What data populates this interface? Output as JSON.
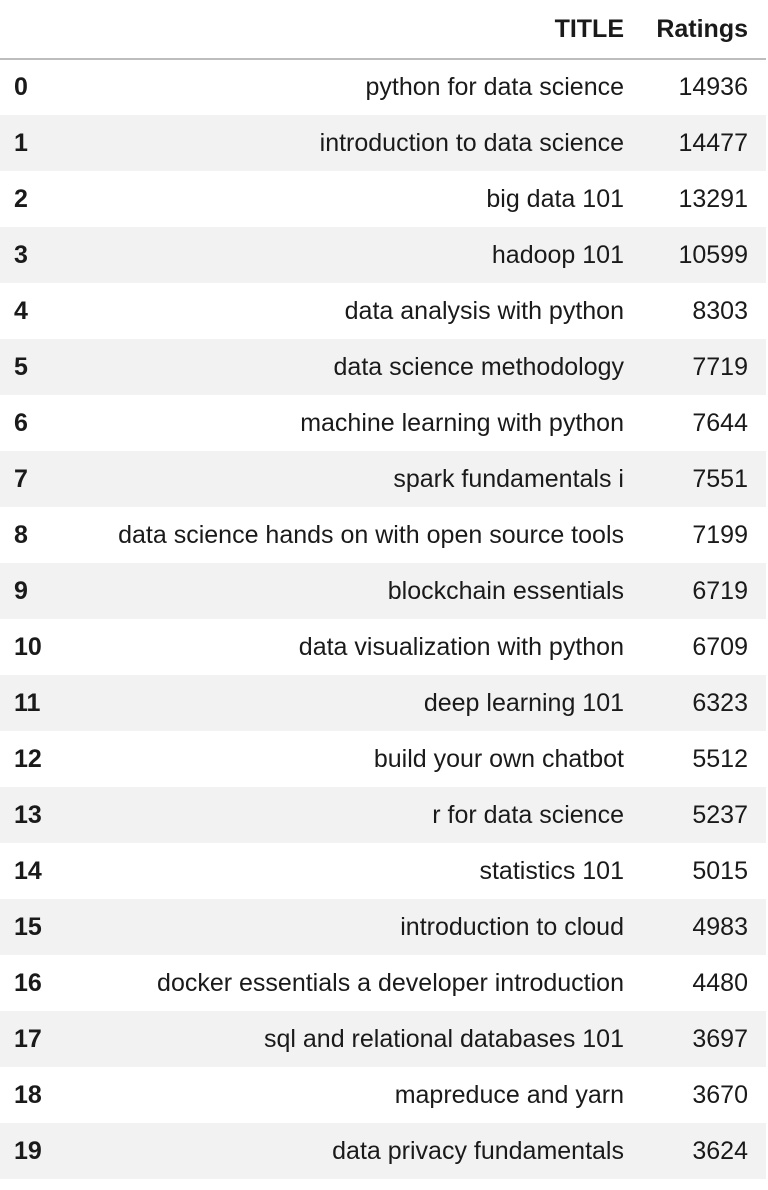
{
  "table": {
    "columns": {
      "index": "",
      "title": "TITLE",
      "ratings": "Ratings"
    },
    "rows": [
      {
        "index": "0",
        "title": "python for data science",
        "ratings": "14936"
      },
      {
        "index": "1",
        "title": "introduction to data science",
        "ratings": "14477"
      },
      {
        "index": "2",
        "title": "big data 101",
        "ratings": "13291"
      },
      {
        "index": "3",
        "title": "hadoop 101",
        "ratings": "10599"
      },
      {
        "index": "4",
        "title": "data analysis with python",
        "ratings": "8303"
      },
      {
        "index": "5",
        "title": "data science methodology",
        "ratings": "7719"
      },
      {
        "index": "6",
        "title": "machine learning with python",
        "ratings": "7644"
      },
      {
        "index": "7",
        "title": "spark fundamentals i",
        "ratings": "7551"
      },
      {
        "index": "8",
        "title": "data science hands on with open source tools",
        "ratings": "7199"
      },
      {
        "index": "9",
        "title": "blockchain essentials",
        "ratings": "6719"
      },
      {
        "index": "10",
        "title": "data visualization with python",
        "ratings": "6709"
      },
      {
        "index": "11",
        "title": "deep learning 101",
        "ratings": "6323"
      },
      {
        "index": "12",
        "title": "build your own chatbot",
        "ratings": "5512"
      },
      {
        "index": "13",
        "title": "r for data science",
        "ratings": "5237"
      },
      {
        "index": "14",
        "title": "statistics 101",
        "ratings": "5015"
      },
      {
        "index": "15",
        "title": "introduction to cloud",
        "ratings": "4983"
      },
      {
        "index": "16",
        "title": "docker essentials a developer introduction",
        "ratings": "4480"
      },
      {
        "index": "17",
        "title": "sql and relational databases 101",
        "ratings": "3697"
      },
      {
        "index": "18",
        "title": "mapreduce and yarn",
        "ratings": "3670"
      },
      {
        "index": "19",
        "title": "data privacy fundamentals",
        "ratings": "3624"
      }
    ]
  },
  "colors": {
    "stripe": "#f2f2f2",
    "header_rule": "#bdbdbd",
    "text": "#1a1a1a"
  }
}
